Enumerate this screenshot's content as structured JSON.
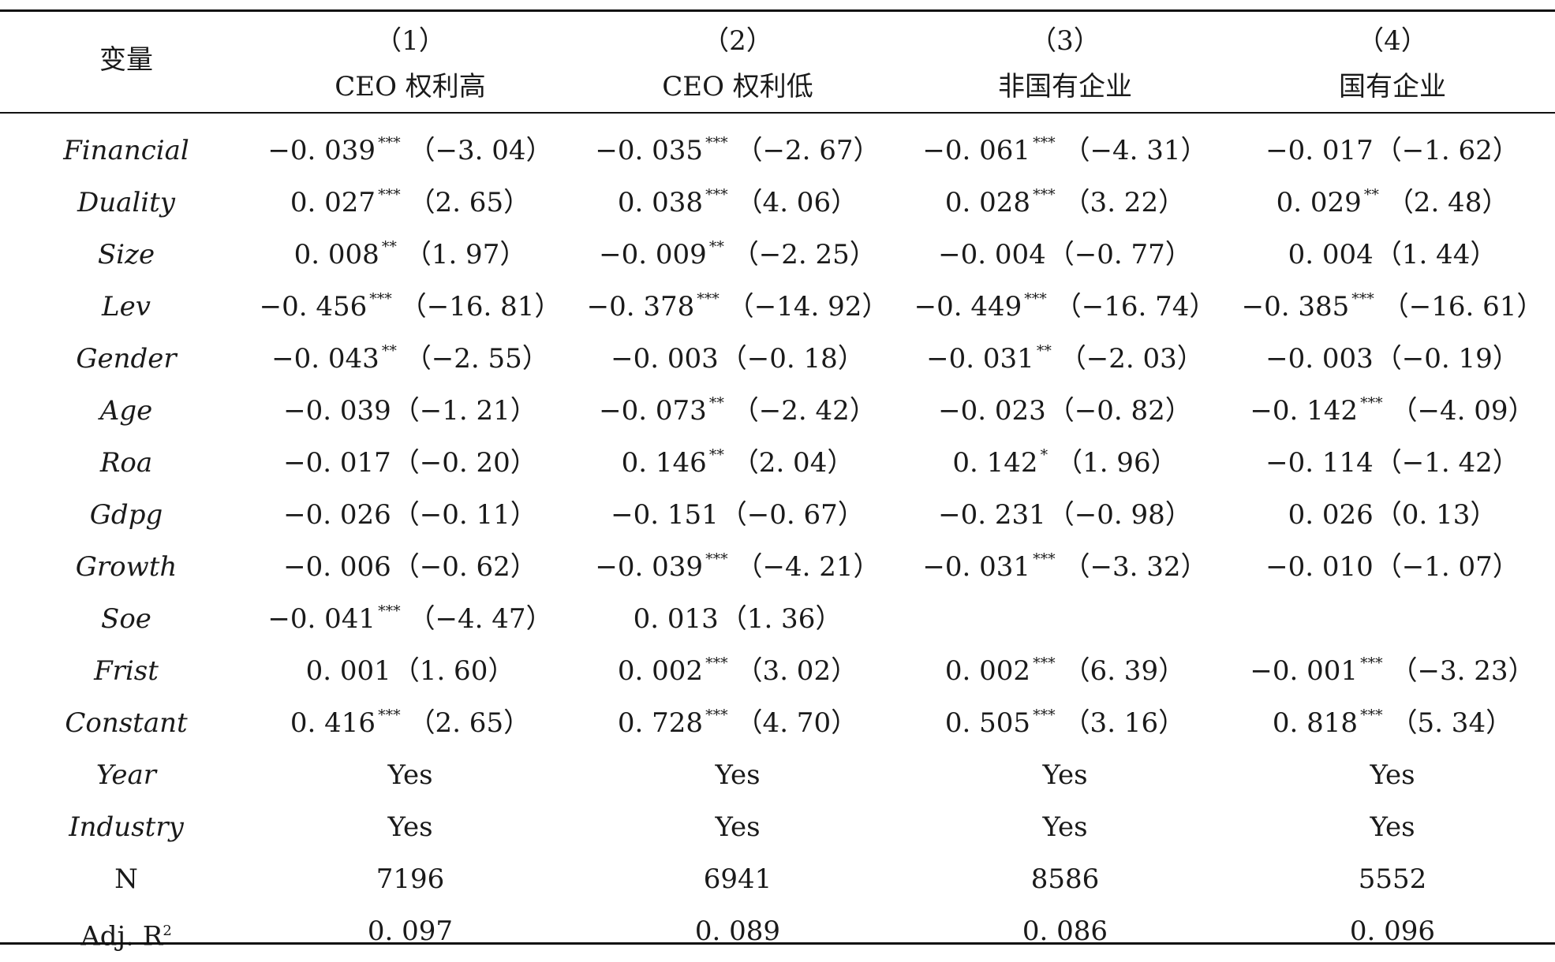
{
  "header": {
    "variable_label": "变量",
    "columns": [
      {
        "num": "（1）",
        "title": "CEO 权利高"
      },
      {
        "num": "（2）",
        "title": "CEO 权利低"
      },
      {
        "num": "（3）",
        "title": "非国有企业"
      },
      {
        "num": "（4）",
        "title": "国有企业"
      }
    ]
  },
  "rows": [
    {
      "variable": "Financial",
      "cells": [
        {
          "coef": "−0. 039",
          "stars": "***",
          "t": "（−3. 04）"
        },
        {
          "coef": "−0. 035",
          "stars": "***",
          "t": "（−2. 67）"
        },
        {
          "coef": "−0. 061",
          "stars": "***",
          "t": "（−4. 31）"
        },
        {
          "coef": "−0. 017",
          "stars": "",
          "t": "（−1. 62）"
        }
      ]
    },
    {
      "variable": "Duality",
      "cells": [
        {
          "coef": "0. 027",
          "stars": "***",
          "t": "（2. 65）"
        },
        {
          "coef": "0. 038",
          "stars": "***",
          "t": "（4. 06）"
        },
        {
          "coef": "0. 028",
          "stars": "***",
          "t": "（3. 22）"
        },
        {
          "coef": "0. 029",
          "stars": "**",
          "t": "（2. 48）"
        }
      ]
    },
    {
      "variable": "Size",
      "cells": [
        {
          "coef": "0. 008",
          "stars": "**",
          "t": "（1. 97）"
        },
        {
          "coef": "−0. 009",
          "stars": "**",
          "t": "（−2. 25）"
        },
        {
          "coef": "−0. 004",
          "stars": "",
          "t": "（−0. 77）"
        },
        {
          "coef": "0. 004",
          "stars": "",
          "t": "（1. 44）"
        }
      ]
    },
    {
      "variable": "Lev",
      "cells": [
        {
          "coef": "−0. 456",
          "stars": "***",
          "t": "（−16. 81）"
        },
        {
          "coef": "−0. 378",
          "stars": "***",
          "t": "（−14. 92）"
        },
        {
          "coef": "−0. 449",
          "stars": "***",
          "t": "（−16. 74）"
        },
        {
          "coef": "−0. 385",
          "stars": "***",
          "t": "（−16. 61）"
        }
      ]
    },
    {
      "variable": "Gender",
      "cells": [
        {
          "coef": "−0. 043",
          "stars": "**",
          "t": "（−2. 55）"
        },
        {
          "coef": "−0. 003",
          "stars": "",
          "t": "（−0. 18）"
        },
        {
          "coef": "−0. 031",
          "stars": "**",
          "t": "（−2. 03）"
        },
        {
          "coef": "−0. 003",
          "stars": "",
          "t": "（−0. 19）"
        }
      ]
    },
    {
      "variable": "Age",
      "cells": [
        {
          "coef": "−0. 039",
          "stars": "",
          "t": "（−1. 21）"
        },
        {
          "coef": "−0. 073",
          "stars": "**",
          "t": "（−2. 42）"
        },
        {
          "coef": "−0. 023",
          "stars": "",
          "t": "（−0. 82）"
        },
        {
          "coef": "−0. 142",
          "stars": "***",
          "t": "（−4. 09）"
        }
      ]
    },
    {
      "variable": "Roa",
      "cells": [
        {
          "coef": "−0. 017",
          "stars": "",
          "t": "（−0. 20）"
        },
        {
          "coef": "0. 146",
          "stars": "**",
          "t": "（2. 04）"
        },
        {
          "coef": "0. 142",
          "stars": "*",
          "t": "（1. 96）"
        },
        {
          "coef": "−0. 114",
          "stars": "",
          "t": "（−1. 42）"
        }
      ]
    },
    {
      "variable": "Gdpg",
      "cells": [
        {
          "coef": "−0. 026",
          "stars": "",
          "t": "（−0. 11）"
        },
        {
          "coef": "−0. 151",
          "stars": "",
          "t": "（−0. 67）"
        },
        {
          "coef": "−0. 231",
          "stars": "",
          "t": "（−0. 98）"
        },
        {
          "coef": "0. 026",
          "stars": "",
          "t": "（0. 13）"
        }
      ]
    },
    {
      "variable": "Growth",
      "cells": [
        {
          "coef": "−0. 006",
          "stars": "",
          "t": "（−0. 62）"
        },
        {
          "coef": "−0. 039",
          "stars": "***",
          "t": "（−4. 21）"
        },
        {
          "coef": "−0. 031",
          "stars": "***",
          "t": "（−3. 32）"
        },
        {
          "coef": "−0. 010",
          "stars": "",
          "t": "（−1. 07）"
        }
      ]
    },
    {
      "variable": "Soe",
      "cells": [
        {
          "coef": "−0. 041",
          "stars": "***",
          "t": "（−4. 47）"
        },
        {
          "coef": "0. 013",
          "stars": "",
          "t": "（1. 36）"
        },
        {
          "coef": "",
          "stars": "",
          "t": ""
        },
        {
          "coef": "",
          "stars": "",
          "t": ""
        }
      ]
    },
    {
      "variable": "Frist",
      "cells": [
        {
          "coef": "0. 001",
          "stars": "",
          "t": "（1. 60）"
        },
        {
          "coef": "0. 002",
          "stars": "***",
          "t": "（3. 02）"
        },
        {
          "coef": "0. 002",
          "stars": "***",
          "t": "（6. 39）"
        },
        {
          "coef": "−0. 001",
          "stars": "***",
          "t": "（−3. 23）"
        }
      ]
    },
    {
      "variable": "Constant",
      "cells": [
        {
          "coef": "0. 416",
          "stars": "***",
          "t": "（2. 65）"
        },
        {
          "coef": "0. 728",
          "stars": "***",
          "t": "（4. 70）"
        },
        {
          "coef": "0. 505",
          "stars": "***",
          "t": "（3. 16）"
        },
        {
          "coef": "0. 818",
          "stars": "***",
          "t": "（5. 34）"
        }
      ]
    }
  ],
  "controls": [
    {
      "variable": "Year",
      "values": [
        "Yes",
        "Yes",
        "Yes",
        "Yes"
      ]
    },
    {
      "variable": "Industry",
      "values": [
        "Yes",
        "Yes",
        "Yes",
        "Yes"
      ]
    }
  ],
  "stats": [
    {
      "variable": "N",
      "values": [
        "7196",
        "6941",
        "8586",
        "5552"
      ]
    },
    {
      "variable": "Adj. R",
      "superscript": "2",
      "values": [
        "0. 097",
        "0. 089",
        "0. 086",
        "0. 096"
      ]
    }
  ]
}
